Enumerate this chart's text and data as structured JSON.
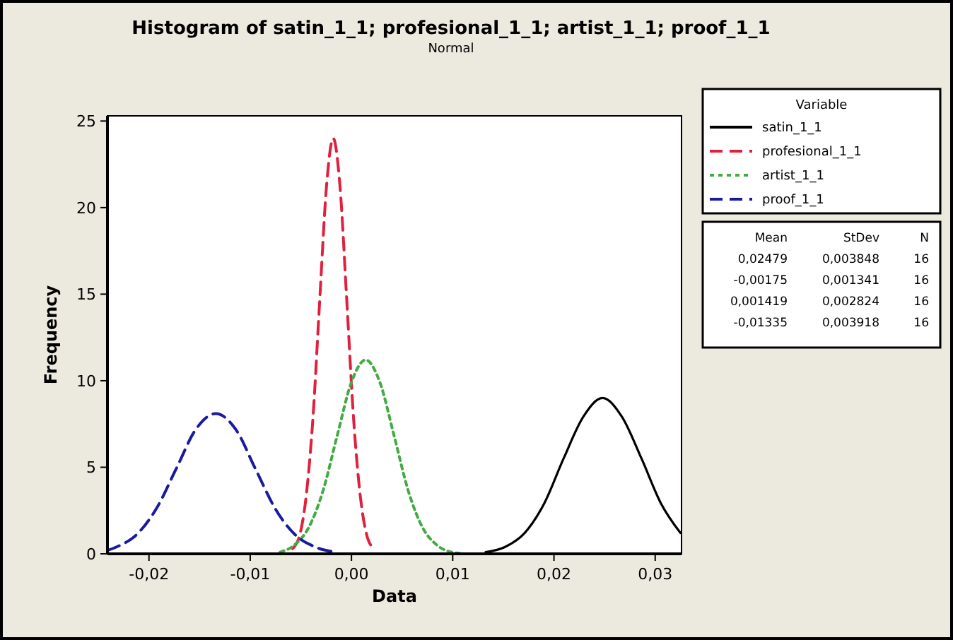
{
  "chart_data": {
    "type": "line",
    "title": "Histogram of satin_1_1; profesional_1_1; artist_1_1; proof_1_1",
    "subtitle": "Normal",
    "xlabel": "Data",
    "ylabel": "Frequency",
    "legend_title": "Variable",
    "legend": "right",
    "grid": false,
    "marker": "none",
    "xlim": [
      -0.0241,
      0.0326
    ],
    "ylim": [
      0,
      25.3
    ],
    "xticks": [
      {
        "value": -0.02,
        "label": "-0,02"
      },
      {
        "value": -0.01,
        "label": "-0,01"
      },
      {
        "value": 0,
        "label": "0,00"
      },
      {
        "value": 0.01,
        "label": "0,01"
      },
      {
        "value": 0.02,
        "label": "0,02"
      },
      {
        "value": 0.03,
        "label": "0,03"
      }
    ],
    "yticks": [
      0,
      5,
      10,
      15,
      20,
      25
    ],
    "annotations": [
      "Mean",
      "StDev",
      "N",
      "0,02479",
      "0,003848",
      "16",
      "-0,00175",
      "0,001341",
      "16",
      "0,001419",
      "0,002824",
      "16",
      "-0,01335",
      "0,003918",
      "16"
    ],
    "series": [
      {
        "name": "satin_1_1",
        "color": "#000000",
        "line_style": "solid",
        "x": [
          0.01325,
          0.01518,
          0.0171,
          0.01903,
          0.02095,
          0.02288,
          0.0248,
          0.02673,
          0.02865,
          0.03058,
          0.0325
        ],
        "values": [
          0.1,
          0.4,
          1.2,
          2.9,
          5.5,
          7.9,
          9,
          7.9,
          5.5,
          2.9,
          1.2
        ]
      },
      {
        "name": "profesional_1_1",
        "color": "#e0203c",
        "line_style": "dashed",
        "x": [
          -0.00582,
          -0.00515,
          -0.00448,
          -0.00381,
          -0.00314,
          -0.00247,
          -0.0018,
          -0.00113,
          -0.00046,
          0.00021,
          0.00088,
          0.00155,
          0.00222
        ],
        "values": [
          0.3,
          1,
          3.3,
          7.8,
          14.6,
          21.2,
          24,
          21.2,
          14.6,
          7.8,
          3.3,
          1,
          0.3
        ]
      },
      {
        "name": "artist_1_1",
        "color": "#44aa44",
        "line_style": "dotted",
        "x": [
          -0.00706,
          -0.00565,
          -0.00424,
          -0.00283,
          -0.00142,
          -1e-05,
          0.0014,
          0.00281,
          0.00422,
          0.00563,
          0.00704,
          0.00845,
          0.00986,
          0.01127
        ],
        "values": [
          0.1,
          0.5,
          1.5,
          3.6,
          6.8,
          9.9,
          11.2,
          9.9,
          6.8,
          3.6,
          1.5,
          0.5,
          0.1,
          0
        ]
      },
      {
        "name": "proof_1_1",
        "color": "#1a1aa0",
        "line_style": "dashed",
        "x": [
          -0.0241,
          -0.0232,
          -0.02124,
          -0.01928,
          -0.01732,
          -0.01536,
          -0.0134,
          -0.01144,
          -0.00948,
          -0.00752,
          -0.00556,
          -0.0036,
          -0.00164
        ],
        "values": [
          0.2,
          0.4,
          1.1,
          2.6,
          4.9,
          7.2,
          8.1,
          7.2,
          4.9,
          2.6,
          1.1,
          0.4,
          0.1
        ]
      }
    ]
  }
}
